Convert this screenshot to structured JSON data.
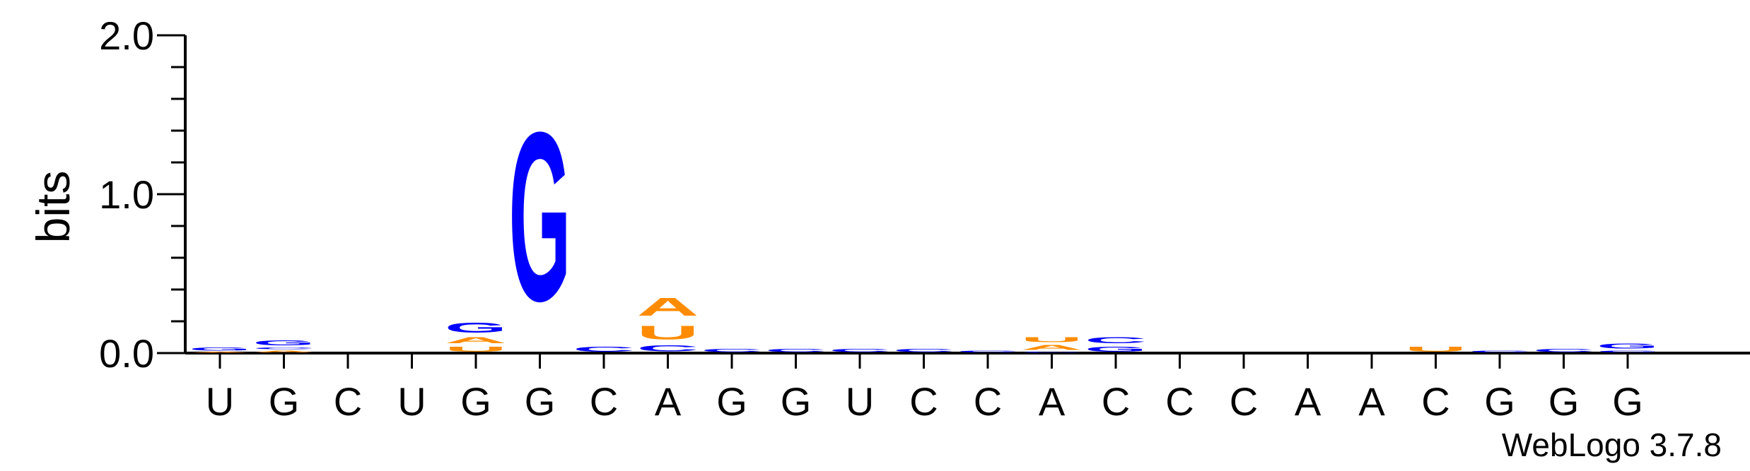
{
  "chart_data": {
    "type": "sequence-logo",
    "ylabel": "bits",
    "ylim": [
      0,
      2
    ],
    "yticks": [
      "0.0",
      "1.0",
      "2.0"
    ],
    "positions": [
      "U",
      "G",
      "C",
      "U",
      "G",
      "G",
      "C",
      "A",
      "G",
      "G",
      "U",
      "C",
      "C",
      "A",
      "C",
      "C",
      "C",
      "A",
      "A",
      "C",
      "G",
      "G",
      "G"
    ],
    "colors": {
      "A": "#ff8c00",
      "U": "#ff8c00",
      "G": "#0000ff",
      "C": "#0000ff"
    },
    "stacks": [
      [
        {
          "letter": "A",
          "bits": 0.01
        },
        {
          "letter": "G",
          "bits": 0.03
        }
      ],
      [
        {
          "letter": "A",
          "bits": 0.02
        },
        {
          "letter": "C",
          "bits": 0.02
        },
        {
          "letter": "G",
          "bits": 0.05
        }
      ],
      [],
      [],
      [
        {
          "letter": "U",
          "bits": 0.05
        },
        {
          "letter": "A",
          "bits": 0.06
        },
        {
          "letter": "G",
          "bits": 0.1
        }
      ],
      [
        {
          "letter": "G",
          "bits": 1.7
        }
      ],
      [
        {
          "letter": "C",
          "bits": 0.05
        }
      ],
      [
        {
          "letter": "C",
          "bits": 0.06
        },
        {
          "letter": "U",
          "bits": 0.14
        },
        {
          "letter": "A",
          "bits": 0.18
        }
      ],
      [
        {
          "letter": "C",
          "bits": 0.03
        }
      ],
      [
        {
          "letter": "C",
          "bits": 0.03
        }
      ],
      [
        {
          "letter": "C",
          "bits": 0.03
        }
      ],
      [
        {
          "letter": "C",
          "bits": 0.03
        }
      ],
      [
        {
          "letter": "C",
          "bits": 0.02
        }
      ],
      [
        {
          "letter": "C",
          "bits": 0.01
        },
        {
          "letter": "A",
          "bits": 0.05
        },
        {
          "letter": "U",
          "bits": 0.05
        }
      ],
      [
        {
          "letter": "G",
          "bits": 0.05
        },
        {
          "letter": "C",
          "bits": 0.06
        }
      ],
      [],
      [],
      [],
      [],
      [
        {
          "letter": "U",
          "bits": 0.05
        }
      ],
      [
        {
          "letter": "C",
          "bits": 0.02
        }
      ],
      [
        {
          "letter": "C",
          "bits": 0.03
        }
      ],
      [
        {
          "letter": "C",
          "bits": 0.02
        },
        {
          "letter": "G",
          "bits": 0.05
        }
      ]
    ],
    "credit": "WebLogo 3.7.8"
  }
}
